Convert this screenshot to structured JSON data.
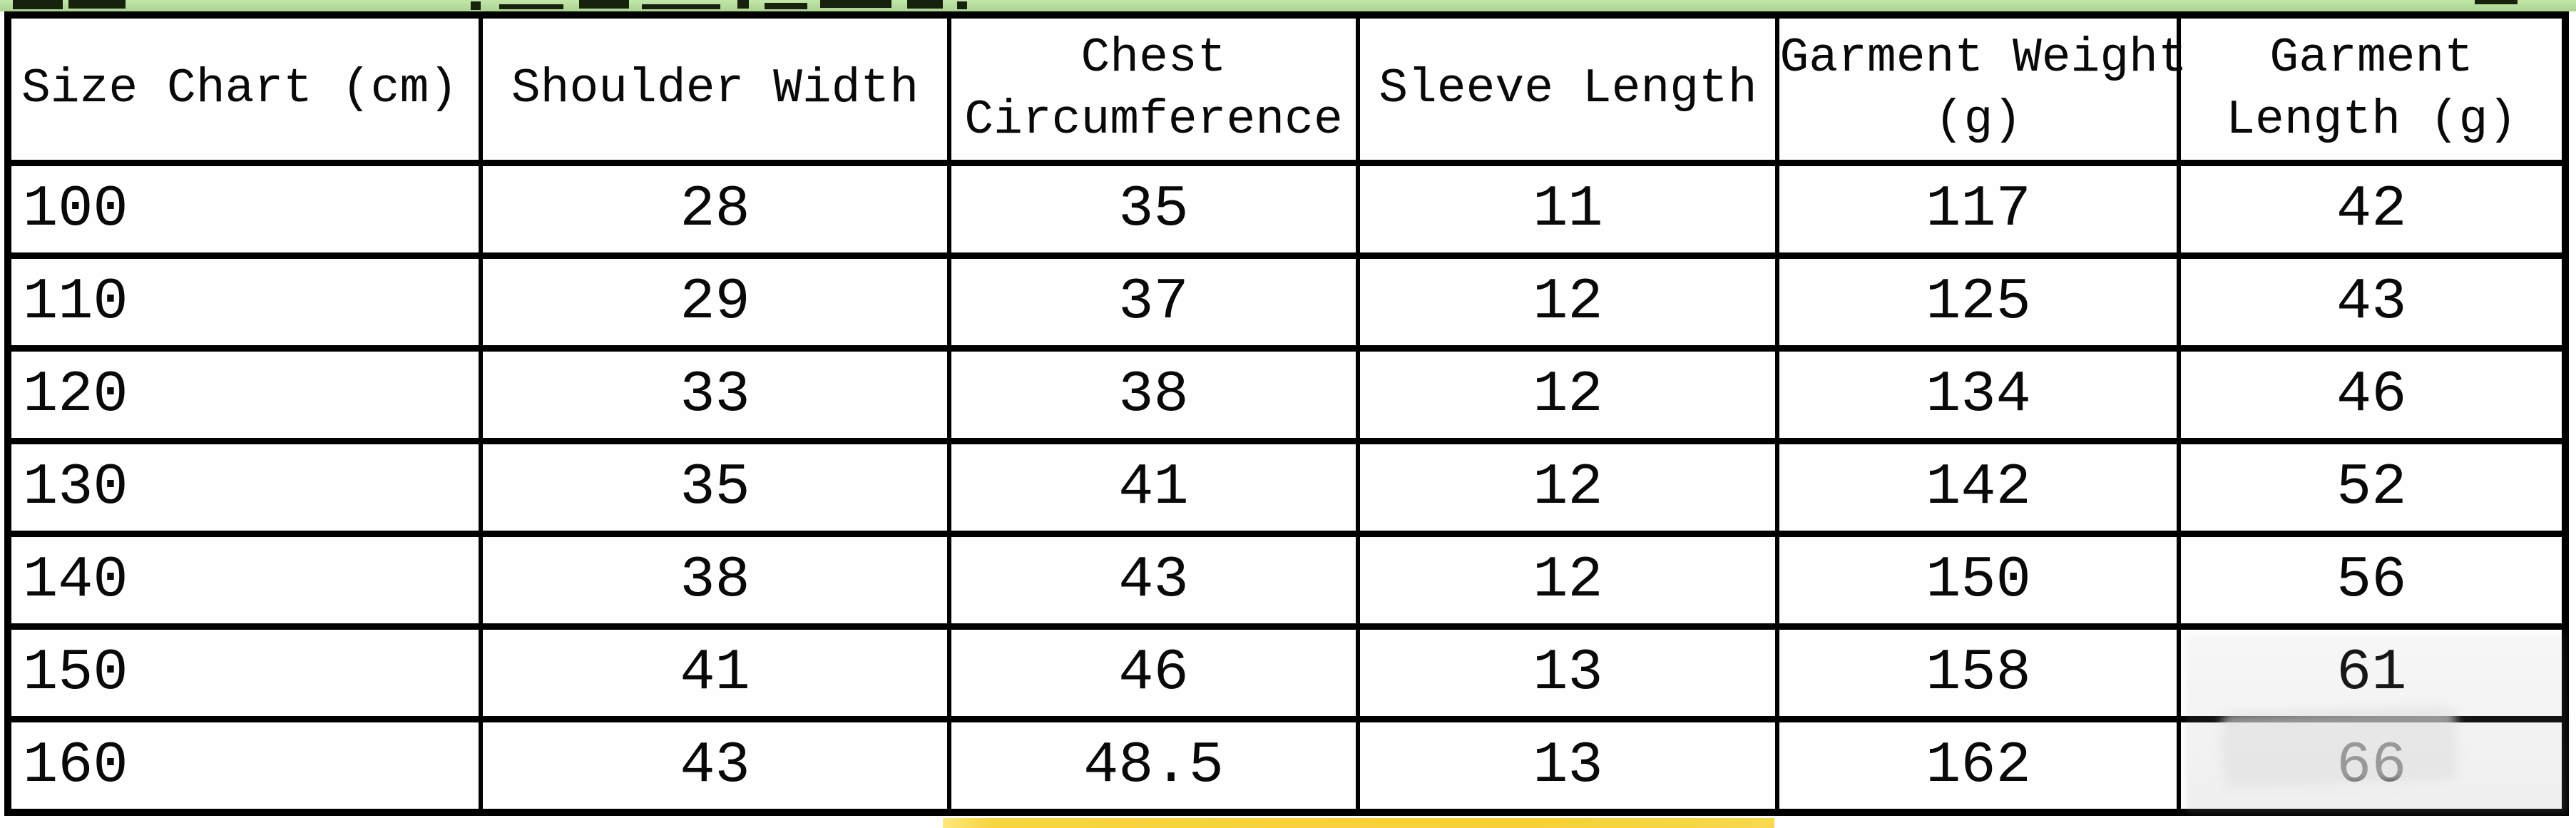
{
  "meta": {
    "banner_top_color": "#b4db9b",
    "banner_bottom_color": "#f6d134",
    "table_border_color": "#000000",
    "text_color": "#090909"
  },
  "table": {
    "headers": [
      {
        "label": "Size Chart (cm)"
      },
      {
        "label": "Shoulder Width"
      },
      {
        "label": "Chest\nCircumference"
      },
      {
        "label": "Sleeve Length"
      },
      {
        "label": "Garment Weight\n(g)"
      },
      {
        "label": "Garment\nLength (g)"
      }
    ],
    "rows": [
      [
        "100",
        "28",
        "35",
        "11",
        "117",
        "42"
      ],
      [
        "110",
        "29",
        "37",
        "12",
        "125",
        "43"
      ],
      [
        "120",
        "33",
        "38",
        "12",
        "134",
        "46"
      ],
      [
        "130",
        "35",
        "41",
        "12",
        "142",
        "52"
      ],
      [
        "140",
        "38",
        "43",
        "12",
        "150",
        "56"
      ],
      [
        "150",
        "41",
        "46",
        "13",
        "158",
        "61"
      ],
      [
        "160",
        "43",
        "48.5",
        "13",
        "162",
        "66"
      ]
    ]
  },
  "chart_data": {
    "type": "table",
    "title": "Size Chart (cm)",
    "columns": [
      "Size Chart (cm)",
      "Shoulder Width",
      "Chest Circumference",
      "Sleeve Length",
      "Garment Weight (g)",
      "Garment Length (g)"
    ],
    "rows": [
      [
        "100",
        28,
        35,
        11,
        117,
        42
      ],
      [
        "110",
        29,
        37,
        12,
        125,
        43
      ],
      [
        "120",
        33,
        38,
        12,
        134,
        46
      ],
      [
        "130",
        35,
        41,
        12,
        142,
        52
      ],
      [
        "140",
        38,
        43,
        12,
        150,
        56
      ],
      [
        "150",
        41,
        46,
        13,
        158,
        61
      ],
      [
        "160",
        43,
        48.5,
        13,
        162,
        66
      ]
    ]
  }
}
